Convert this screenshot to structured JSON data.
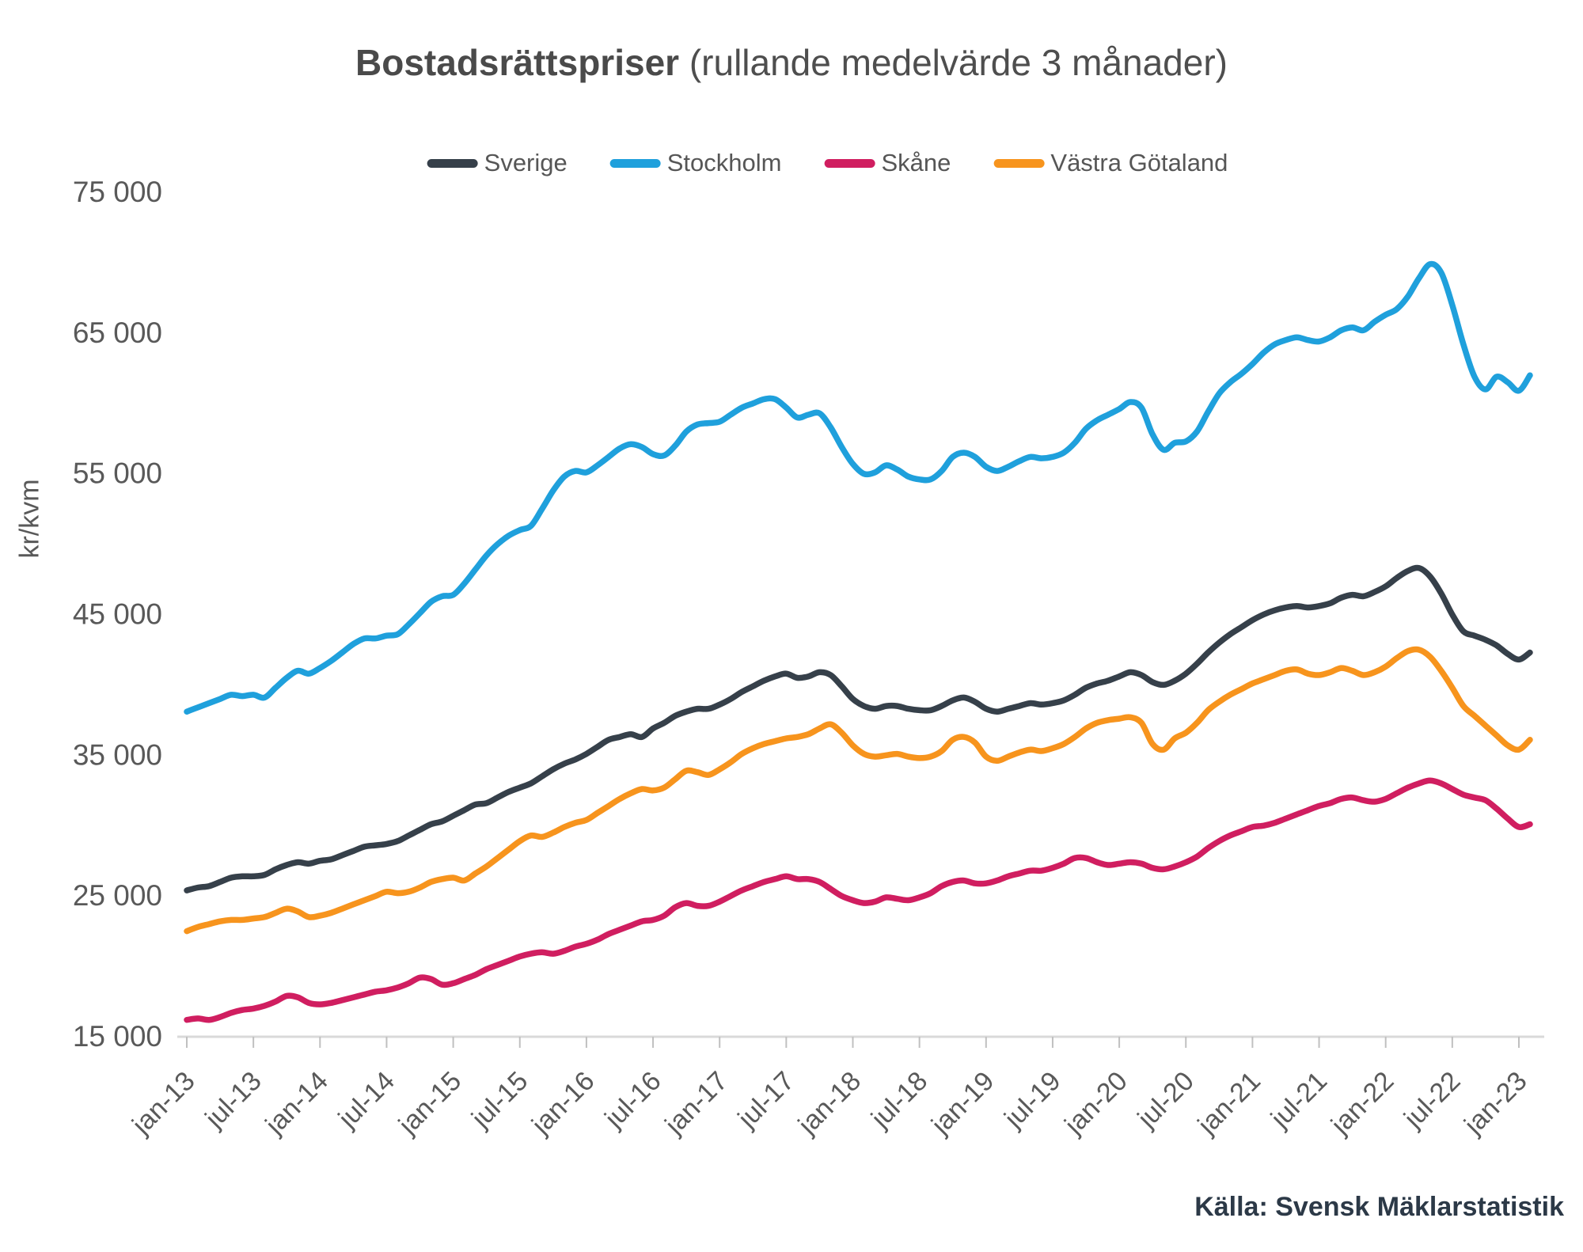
{
  "title": {
    "bold": "Bostadsrättspriser",
    "rest": " (rullande medelvärde 3 månader)"
  },
  "source": {
    "label": "Källa: Svensk Mäklarstatistik"
  },
  "axis_colors": {
    "axis_line": "#d9d9d9",
    "tick": "#c0c0c0",
    "tick_text": "#595959"
  },
  "chart_data": {
    "type": "line",
    "title": "Bostadsrättspriser (rullande medelvärde 3 månader)",
    "xlabel": "",
    "ylabel": "kr/kvm",
    "ylim": [
      15000,
      75000
    ],
    "y_ticks": [
      15000,
      25000,
      35000,
      45000,
      55000,
      65000,
      75000
    ],
    "y_tick_labels": [
      "15 000",
      "25 000",
      "35 000",
      "45 000",
      "55 000",
      "65 000",
      "75 000"
    ],
    "x_start": "2013-01",
    "x_interval": "1 month",
    "n_points": 122,
    "x_tick_every_months": 6,
    "x_tick_labels": [
      "jan-13",
      "jul-13",
      "jan-14",
      "jul-14",
      "jan-15",
      "jul-15",
      "jan-16",
      "jul-16",
      "jan-17",
      "jul-17",
      "jan-18",
      "jul-18",
      "jan-19",
      "jul-19",
      "jan-20",
      "jul-20",
      "jan-21",
      "jul-21",
      "jan-22",
      "jul-22",
      "jan-23"
    ],
    "grid": false,
    "legend_position": "top",
    "series": [
      {
        "name": "Sverige",
        "color": "#36404a",
        "values": [
          25400,
          25600,
          25700,
          26000,
          26300,
          26400,
          26400,
          26500,
          26900,
          27200,
          27400,
          27300,
          27500,
          27600,
          27900,
          28200,
          28500,
          28600,
          28700,
          28900,
          29300,
          29700,
          30100,
          30300,
          30700,
          31100,
          31500,
          31600,
          32000,
          32400,
          32700,
          33000,
          33500,
          34000,
          34400,
          34700,
          35100,
          35600,
          36100,
          36300,
          36500,
          36300,
          36900,
          37300,
          37800,
          38100,
          38300,
          38300,
          38600,
          39000,
          39500,
          39900,
          40300,
          40600,
          40800,
          40500,
          40600,
          40900,
          40700,
          39900,
          39000,
          38500,
          38300,
          38500,
          38500,
          38300,
          38200,
          38200,
          38500,
          38900,
          39100,
          38800,
          38300,
          38100,
          38300,
          38500,
          38700,
          38600,
          38700,
          38900,
          39300,
          39800,
          40100,
          40300,
          40600,
          40900,
          40700,
          40200,
          40000,
          40300,
          40800,
          41500,
          42300,
          43000,
          43600,
          44100,
          44600,
          45000,
          45300,
          45500,
          45600,
          45500,
          45600,
          45800,
          46200,
          46400,
          46300,
          46600,
          47000,
          47600,
          48100,
          48300,
          47700,
          46500,
          45000,
          43800,
          43500,
          43200,
          42800,
          42200,
          41800,
          42300
        ]
      },
      {
        "name": "Stockholm",
        "color": "#1fa0dc",
        "values": [
          38100,
          38400,
          38700,
          39000,
          39300,
          39200,
          39300,
          39100,
          39800,
          40500,
          41000,
          40800,
          41200,
          41700,
          42300,
          42900,
          43300,
          43300,
          43500,
          43600,
          44300,
          45100,
          45900,
          46300,
          46400,
          47200,
          48200,
          49200,
          50000,
          50600,
          51000,
          51300,
          52500,
          53800,
          54800,
          55200,
          55100,
          55600,
          56200,
          56800,
          57100,
          56900,
          56400,
          56300,
          57000,
          58000,
          58500,
          58600,
          58700,
          59200,
          59700,
          60000,
          60300,
          60300,
          59700,
          59000,
          59200,
          59300,
          58300,
          56900,
          55700,
          55000,
          55100,
          55600,
          55300,
          54800,
          54600,
          54600,
          55200,
          56200,
          56500,
          56200,
          55500,
          55200,
          55500,
          55900,
          56200,
          56100,
          56200,
          56500,
          57200,
          58200,
          58800,
          59200,
          59600,
          60100,
          59700,
          57800,
          56700,
          57200,
          57300,
          58000,
          59400,
          60700,
          61500,
          62100,
          62800,
          63600,
          64200,
          64500,
          64700,
          64500,
          64400,
          64700,
          65200,
          65400,
          65200,
          65800,
          66300,
          66700,
          67600,
          68900,
          69900,
          69300,
          67000,
          64200,
          61900,
          61000,
          61900,
          61500,
          60900,
          62000
        ]
      },
      {
        "name": "Skåne",
        "color": "#d01e60",
        "values": [
          16200,
          16300,
          16200,
          16400,
          16700,
          16900,
          17000,
          17200,
          17500,
          17900,
          17800,
          17400,
          17300,
          17400,
          17600,
          17800,
          18000,
          18200,
          18300,
          18500,
          18800,
          19200,
          19100,
          18700,
          18800,
          19100,
          19400,
          19800,
          20100,
          20400,
          20700,
          20900,
          21000,
          20900,
          21100,
          21400,
          21600,
          21900,
          22300,
          22600,
          22900,
          23200,
          23300,
          23600,
          24200,
          24500,
          24300,
          24300,
          24600,
          25000,
          25400,
          25700,
          26000,
          26200,
          26400,
          26200,
          26200,
          26000,
          25500,
          25000,
          24700,
          24500,
          24600,
          24900,
          24800,
          24700,
          24900,
          25200,
          25700,
          26000,
          26100,
          25900,
          25900,
          26100,
          26400,
          26600,
          26800,
          26800,
          27000,
          27300,
          27700,
          27700,
          27400,
          27200,
          27300,
          27400,
          27300,
          27000,
          26900,
          27100,
          27400,
          27800,
          28400,
          28900,
          29300,
          29600,
          29900,
          30000,
          30200,
          30500,
          30800,
          31100,
          31400,
          31600,
          31900,
          32000,
          31800,
          31700,
          31900,
          32300,
          32700,
          33000,
          33200,
          33000,
          32600,
          32200,
          32000,
          31800,
          31200,
          30500,
          29900,
          30100
        ]
      },
      {
        "name": "Västra Götaland",
        "color": "#f7941d",
        "values": [
          22500,
          22800,
          23000,
          23200,
          23300,
          23300,
          23400,
          23500,
          23800,
          24100,
          23900,
          23500,
          23600,
          23800,
          24100,
          24400,
          24700,
          25000,
          25300,
          25200,
          25300,
          25600,
          26000,
          26200,
          26300,
          26100,
          26600,
          27100,
          27700,
          28300,
          28900,
          29300,
          29200,
          29500,
          29900,
          30200,
          30400,
          30900,
          31400,
          31900,
          32300,
          32600,
          32500,
          32700,
          33300,
          33900,
          33800,
          33600,
          34000,
          34500,
          35100,
          35500,
          35800,
          36000,
          36200,
          36300,
          36500,
          36900,
          37200,
          36600,
          35700,
          35100,
          34900,
          35000,
          35100,
          34900,
          34800,
          34900,
          35300,
          36100,
          36300,
          35900,
          34900,
          34600,
          34900,
          35200,
          35400,
          35300,
          35500,
          35800,
          36300,
          36900,
          37300,
          37500,
          37600,
          37700,
          37300,
          35800,
          35400,
          36200,
          36600,
          37300,
          38200,
          38800,
          39300,
          39700,
          40100,
          40400,
          40700,
          41000,
          41100,
          40800,
          40700,
          40900,
          41200,
          41000,
          40700,
          40900,
          41300,
          41900,
          42400,
          42500,
          42000,
          41000,
          39800,
          38500,
          37800,
          37100,
          36400,
          35700,
          35400,
          36100
        ]
      }
    ]
  }
}
